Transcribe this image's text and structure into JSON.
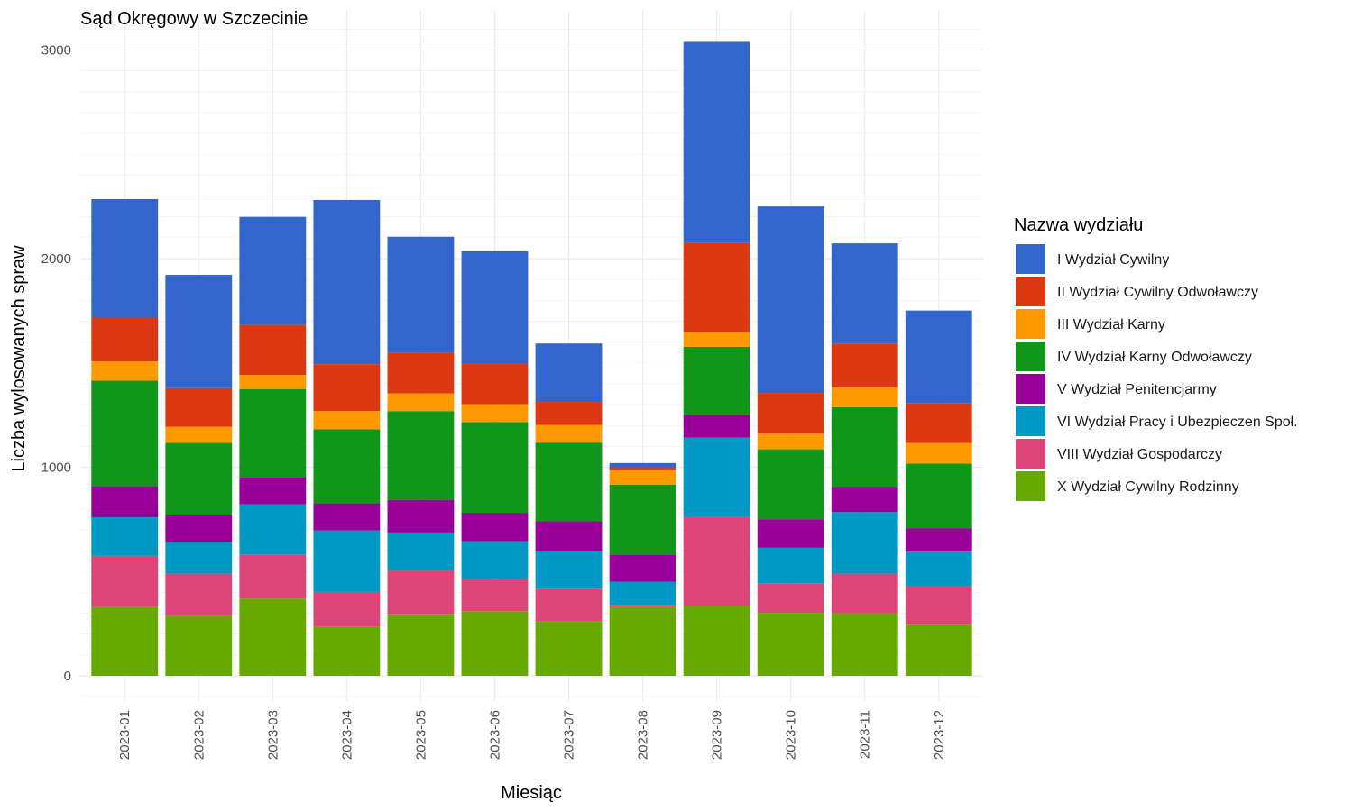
{
  "chart_data": {
    "type": "bar",
    "stacked": true,
    "title": "Sąd Okręgowy w Szczecinie",
    "xlabel": "Miesiąc",
    "ylabel": "Liczba wylosowanych spraw",
    "ylim": [
      0,
      3000
    ],
    "yticks": [
      0,
      1000,
      2000,
      3000
    ],
    "grid": true,
    "legend_title": "Nazwa wydziału",
    "legend_position": "right",
    "categories": [
      "2023-01",
      "2023-02",
      "2023-03",
      "2023-04",
      "2023-05",
      "2023-06",
      "2023-07",
      "2023-08",
      "2023-09",
      "2023-10",
      "2023-11",
      "2023-12"
    ],
    "series": [
      {
        "name": "X Wydział Cywilny Rodzinny",
        "color": "#66AA00",
        "values": [
          330,
          290,
          370,
          237,
          297,
          310,
          263,
          330,
          335,
          302,
          300,
          245
        ]
      },
      {
        "name": "VIII Wydział Gospodarczy",
        "color": "#DD4477",
        "values": [
          245,
          200,
          210,
          165,
          210,
          155,
          155,
          10,
          427,
          140,
          190,
          185
        ]
      },
      {
        "name": "VI Wydział Pracy i Ubezpieczen Społ.",
        "color": "#0099C6",
        "values": [
          185,
          150,
          242,
          295,
          180,
          180,
          180,
          110,
          380,
          172,
          295,
          165
        ]
      },
      {
        "name": "V Wydział Penitencjarmy",
        "color": "#990099",
        "values": [
          150,
          130,
          130,
          130,
          157,
          137,
          143,
          132,
          110,
          137,
          120,
          113
        ]
      },
      {
        "name": "IV Wydział Karny Odwoławczy",
        "color": "#109618",
        "values": [
          505,
          347,
          423,
          355,
          425,
          435,
          377,
          335,
          325,
          335,
          383,
          310
        ]
      },
      {
        "name": "III Wydział Karny",
        "color": "#FF9900",
        "values": [
          92,
          77,
          67,
          87,
          85,
          85,
          85,
          68,
          72,
          75,
          95,
          98
        ]
      },
      {
        "name": "II Wydział Cywilny Odwoławczy",
        "color": "#DC3912",
        "values": [
          210,
          185,
          240,
          225,
          195,
          195,
          110,
          15,
          428,
          195,
          210,
          190
        ]
      },
      {
        "name": "I Wydział Cywilny",
        "color": "#3366CC",
        "values": [
          568,
          543,
          518,
          787,
          556,
          538,
          280,
          20,
          962,
          894,
          480,
          445
        ]
      }
    ]
  }
}
